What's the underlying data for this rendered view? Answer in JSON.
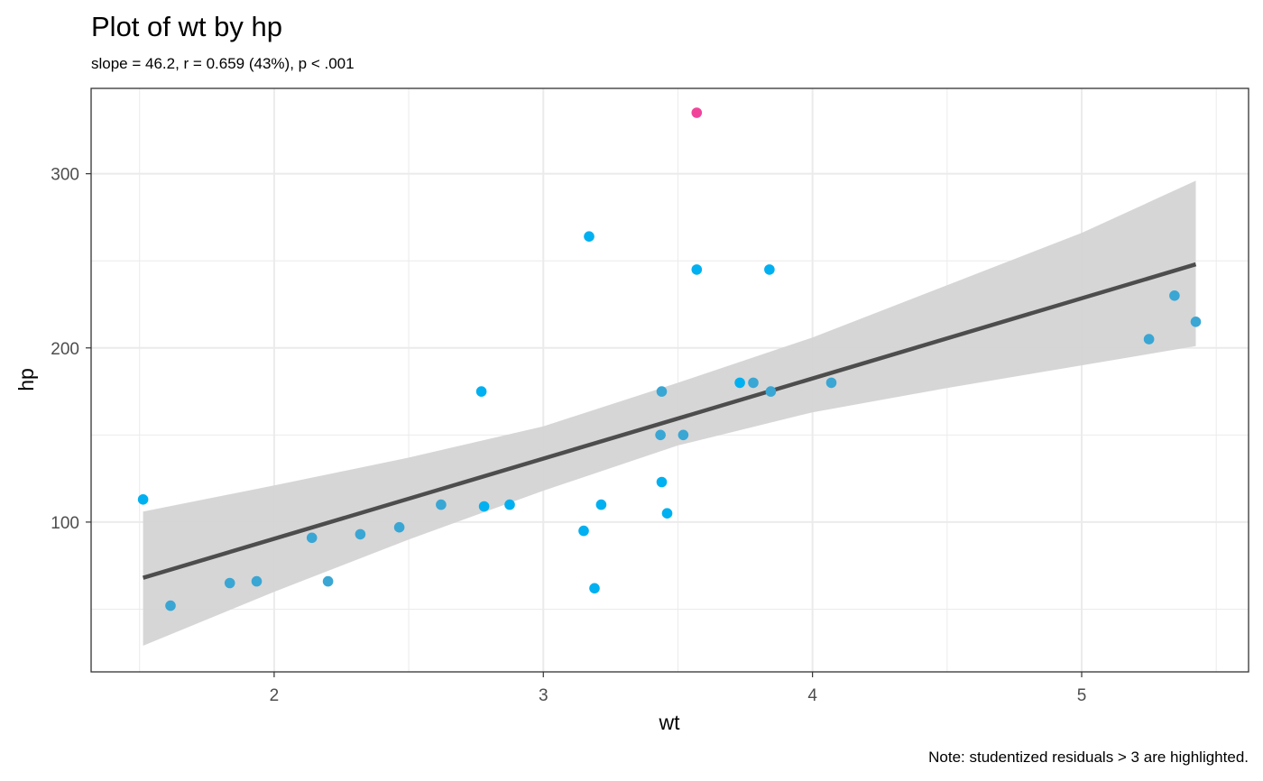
{
  "chart_data": {
    "type": "scatter",
    "title": "Plot of wt by hp",
    "subtitle": "slope = 46.2, r = 0.659 (43%), p < .001",
    "caption": "Note: studentized residuals > 3 are highlighted.",
    "xlabel": "wt",
    "ylabel": "hp",
    "xlim": [
      1.32,
      5.62
    ],
    "ylim": [
      14,
      349
    ],
    "x_ticks": [
      2,
      3,
      4,
      5
    ],
    "y_ticks": [
      100,
      200,
      300
    ],
    "x_tick_labels": [
      "2",
      "3",
      "4",
      "5"
    ],
    "y_tick_labels": [
      "100",
      "200",
      "300"
    ],
    "grid": true,
    "colors": {
      "point": "#00b0f0",
      "point_near_line": "#3aa6d4",
      "highlight": "#f0449b",
      "fit_line": "#4d4d4d",
      "band": "#d4d4d4",
      "grid": "#ebebeb",
      "border": "#333333"
    },
    "points": [
      {
        "x": 1.513,
        "y": 113,
        "highlight": false
      },
      {
        "x": 1.615,
        "y": 52,
        "highlight": false
      },
      {
        "x": 1.835,
        "y": 65,
        "highlight": false
      },
      {
        "x": 1.935,
        "y": 66,
        "highlight": false
      },
      {
        "x": 2.14,
        "y": 91,
        "highlight": false
      },
      {
        "x": 2.2,
        "y": 66,
        "highlight": false
      },
      {
        "x": 2.32,
        "y": 93,
        "highlight": false
      },
      {
        "x": 2.465,
        "y": 97,
        "highlight": false
      },
      {
        "x": 2.62,
        "y": 110,
        "highlight": false
      },
      {
        "x": 2.77,
        "y": 175,
        "highlight": false
      },
      {
        "x": 2.78,
        "y": 109,
        "highlight": false
      },
      {
        "x": 2.875,
        "y": 110,
        "highlight": false
      },
      {
        "x": 3.15,
        "y": 95,
        "highlight": false
      },
      {
        "x": 3.17,
        "y": 264,
        "highlight": false
      },
      {
        "x": 3.19,
        "y": 62,
        "highlight": false
      },
      {
        "x": 3.215,
        "y": 110,
        "highlight": false
      },
      {
        "x": 3.435,
        "y": 150,
        "highlight": false
      },
      {
        "x": 3.44,
        "y": 175,
        "highlight": false
      },
      {
        "x": 3.44,
        "y": 123,
        "highlight": false
      },
      {
        "x": 3.46,
        "y": 105,
        "highlight": false
      },
      {
        "x": 3.52,
        "y": 150,
        "highlight": false
      },
      {
        "x": 3.57,
        "y": 245,
        "highlight": false
      },
      {
        "x": 3.57,
        "y": 335,
        "highlight": true
      },
      {
        "x": 3.73,
        "y": 180,
        "highlight": false
      },
      {
        "x": 3.78,
        "y": 180,
        "highlight": false
      },
      {
        "x": 3.84,
        "y": 245,
        "highlight": false
      },
      {
        "x": 3.845,
        "y": 175,
        "highlight": false
      },
      {
        "x": 4.07,
        "y": 180,
        "highlight": false
      },
      {
        "x": 5.25,
        "y": 205,
        "highlight": false
      },
      {
        "x": 5.345,
        "y": 230,
        "highlight": false
      },
      {
        "x": 5.424,
        "y": 215,
        "highlight": false
      }
    ],
    "fit": {
      "x": [
        1.513,
        5.424
      ],
      "y": [
        68,
        248
      ]
    },
    "confidence_band": [
      {
        "x": 1.513,
        "lower": 29,
        "upper": 106
      },
      {
        "x": 2.0,
        "lower": 60,
        "upper": 121
      },
      {
        "x": 2.5,
        "lower": 90,
        "upper": 137
      },
      {
        "x": 3.0,
        "lower": 118,
        "upper": 155
      },
      {
        "x": 3.5,
        "lower": 144,
        "upper": 180
      },
      {
        "x": 4.0,
        "lower": 163,
        "upper": 206
      },
      {
        "x": 4.5,
        "lower": 177,
        "upper": 236
      },
      {
        "x": 5.0,
        "lower": 190,
        "upper": 266
      },
      {
        "x": 5.424,
        "lower": 201,
        "upper": 296
      }
    ]
  }
}
